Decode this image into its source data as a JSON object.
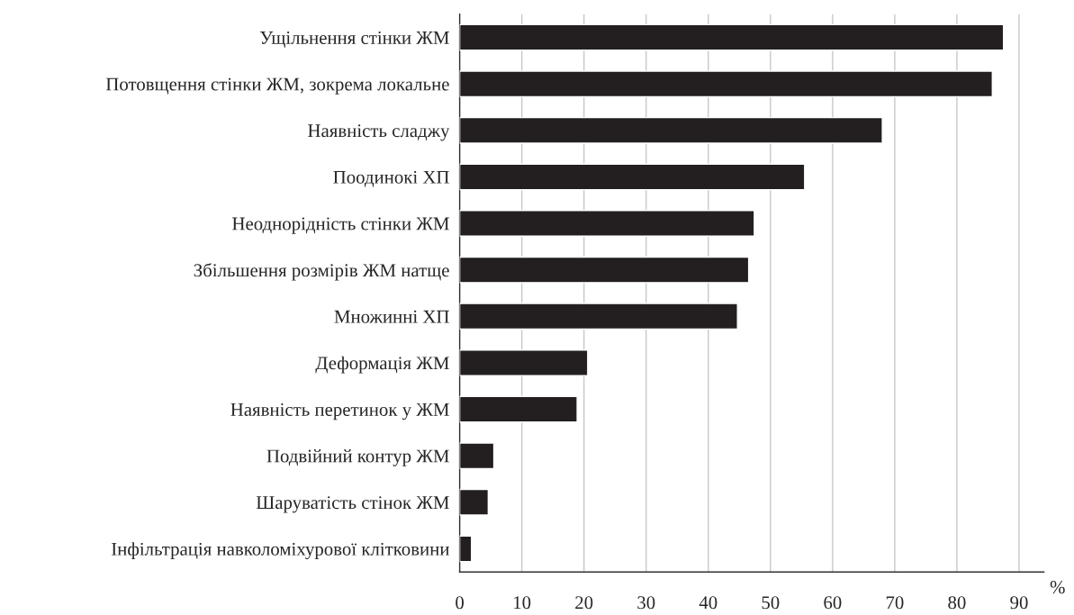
{
  "chart_data": {
    "type": "bar",
    "orientation": "horizontal",
    "xlabel": "%",
    "categories": [
      "Ущільнення стінки ЖМ",
      "Потовщення стінки ЖМ, зокрема локальне",
      "Наявність сладжу",
      "Поодинокі ХП",
      "Неоднорідність стінки ЖМ",
      "Збільшення розмірів ЖМ натще",
      "Множинні ХП",
      "Деформація ЖМ",
      "Наявність перетинок у ЖМ",
      "Подвійний контур ЖМ",
      "Шаруватість стінок ЖМ",
      "Інфільтрація навколоміхурової клітковини"
    ],
    "values": [
      87.5,
      85.7,
      68,
      55.5,
      47.4,
      46.5,
      44.7,
      20.6,
      18.9,
      5.5,
      4.6,
      1.9
    ],
    "color": "#231f20",
    "xlim": [
      0,
      94
    ],
    "xticks": [
      0,
      10,
      20,
      30,
      40,
      50,
      60,
      70,
      80,
      90
    ],
    "grid": "x"
  }
}
